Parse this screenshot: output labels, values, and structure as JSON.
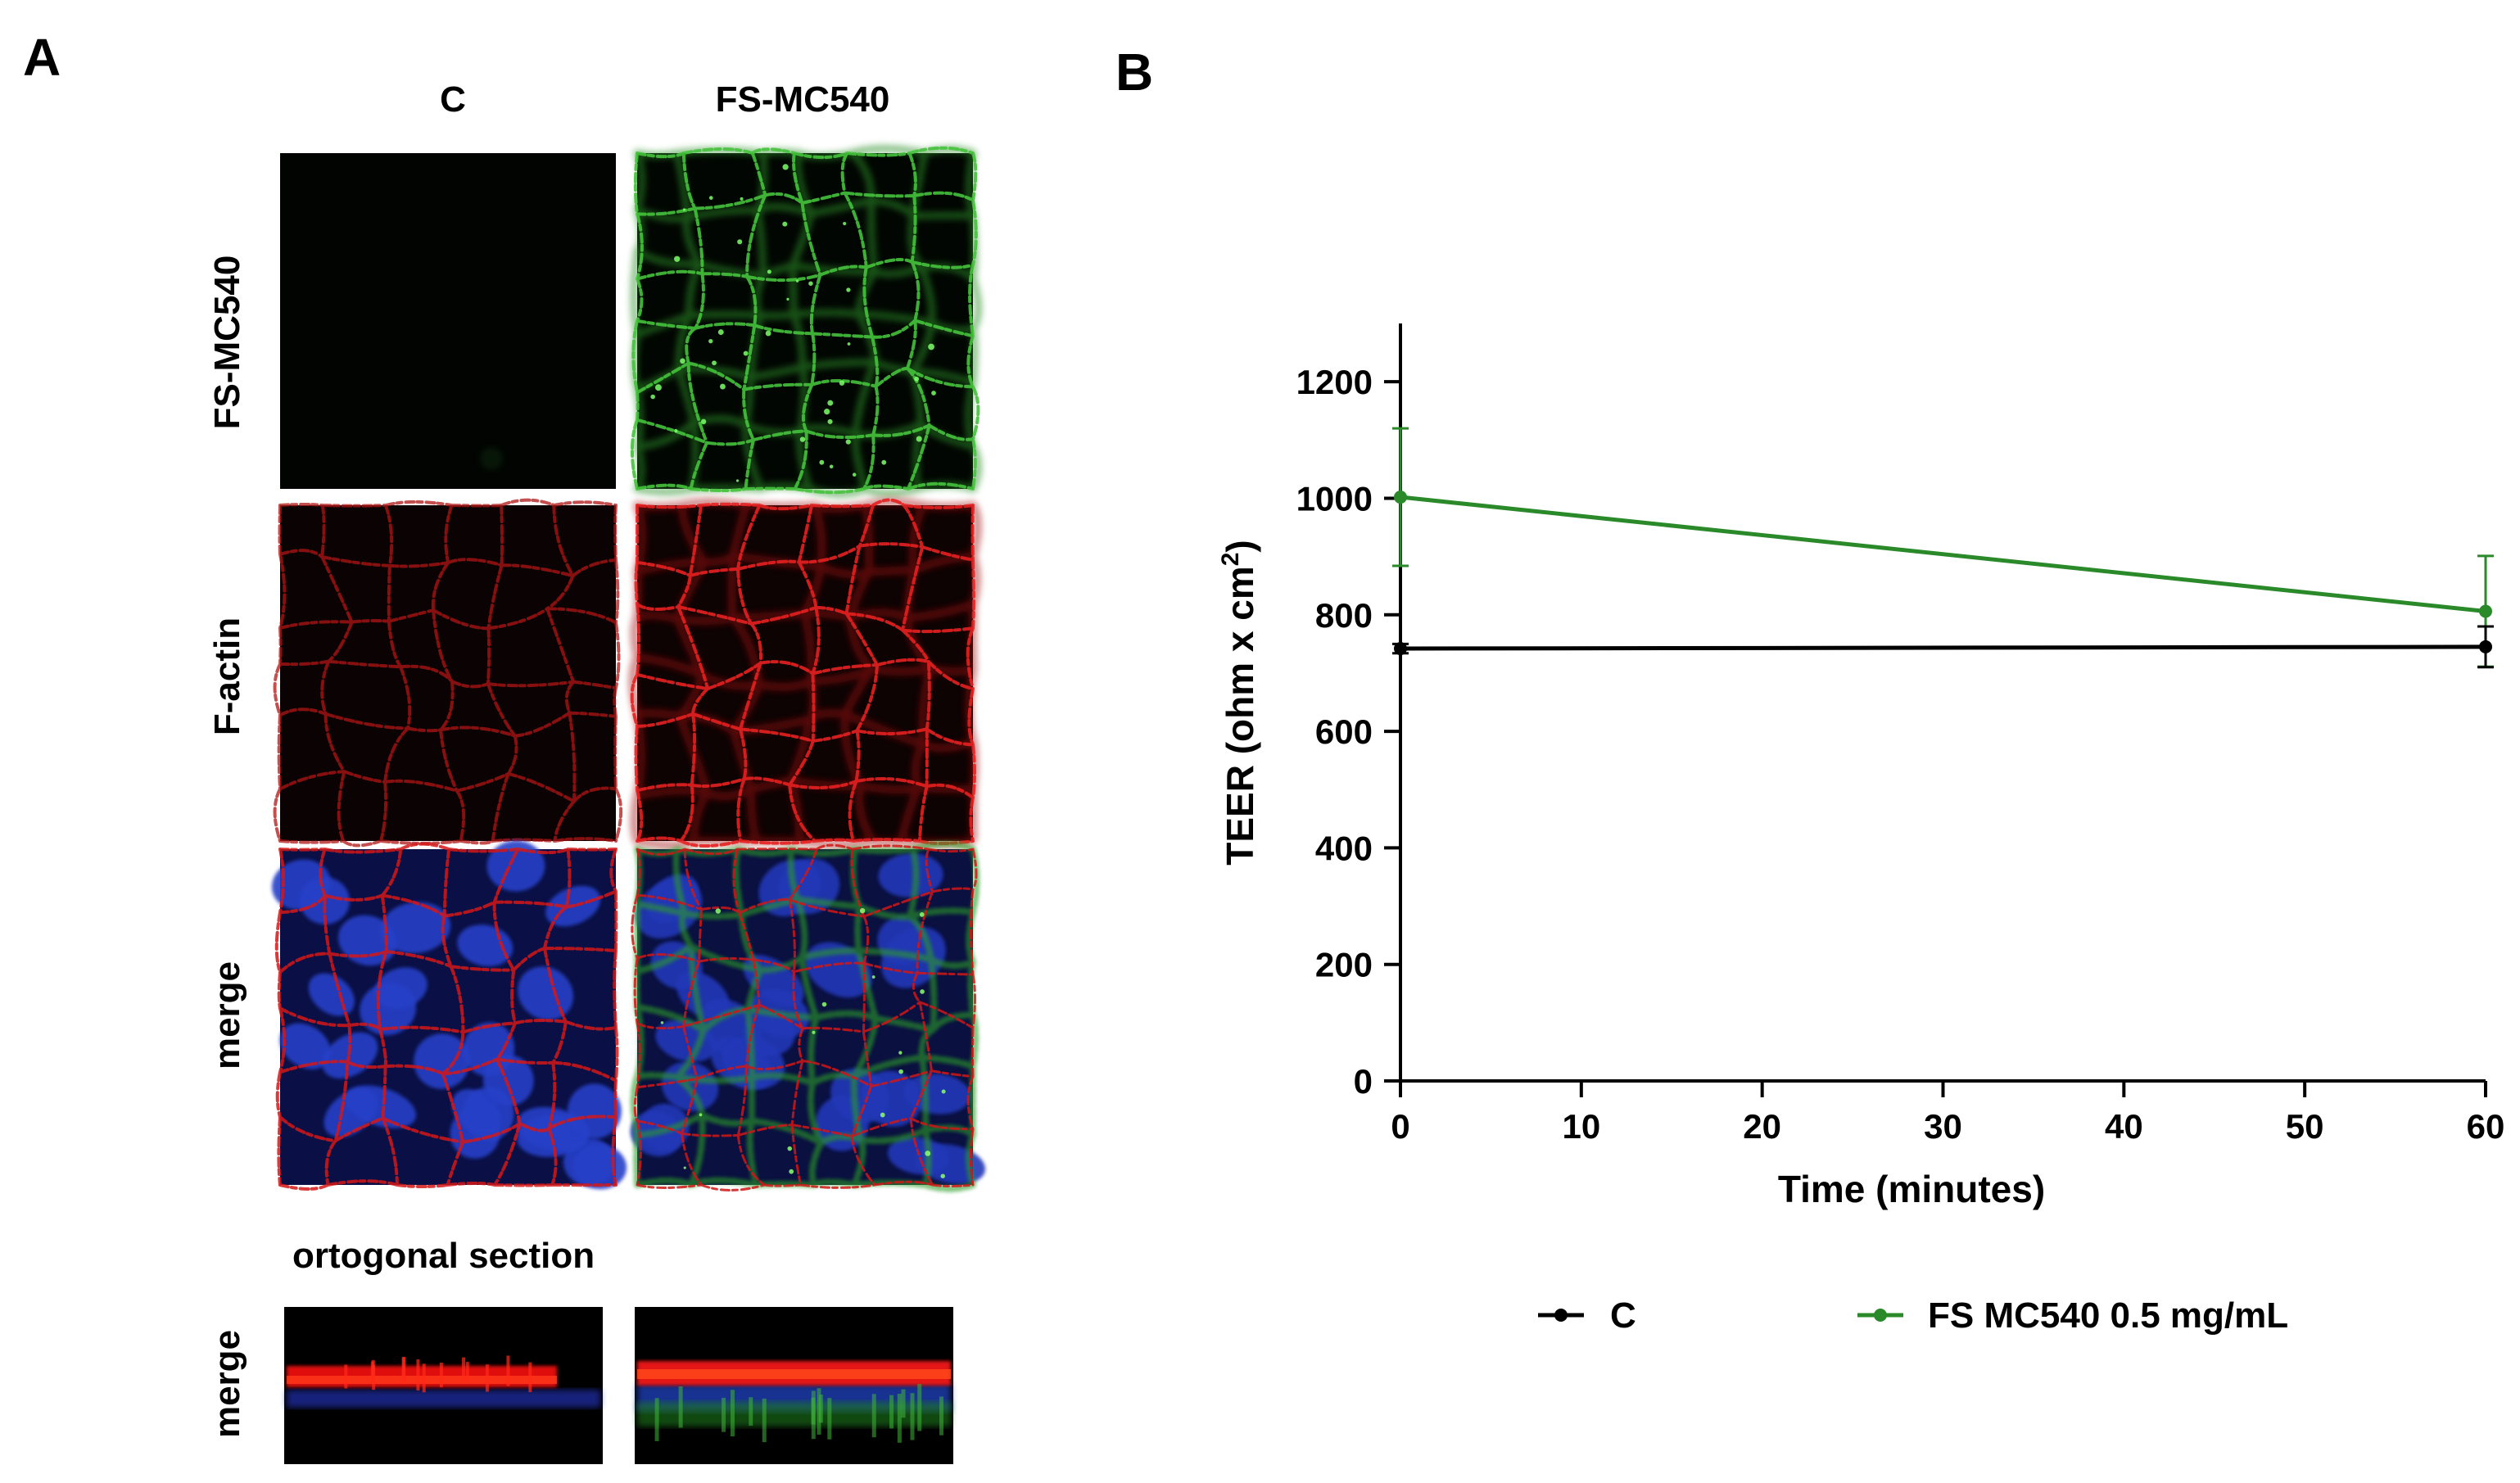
{
  "panel_a": {
    "letter": "A",
    "columns": [
      "C",
      "FS-MC540"
    ],
    "rows": [
      "FS-MC540",
      "F-actin",
      "merge"
    ],
    "section_title": "ortogonal section",
    "section_row_label": "merge"
  },
  "panel_b": {
    "letter": "B"
  },
  "colors": {
    "green_channel": "#2f9a2a",
    "red_channel": "#d21a1a",
    "blue_channel": "#1f3bc8",
    "series_c": "#000000",
    "series_fs": "#2a8a2a"
  },
  "chart_data": {
    "type": "line",
    "xlabel": "Time (minutes)",
    "ylabel": "TEER (ohm x cm",
    "ylabel_sup": "2",
    "ylabel_end": ")",
    "xlim": [
      0,
      60
    ],
    "ylim": [
      0,
      1300
    ],
    "x_ticks": [
      "0",
      "10",
      "20",
      "30",
      "40",
      "50",
      "60"
    ],
    "y_ticks": [
      "0",
      "200",
      "400",
      "600",
      "800",
      "1000",
      "1200"
    ],
    "legend_position": "bottom",
    "series": [
      {
        "name": "C",
        "x": [
          0,
          60
        ],
        "y": [
          742,
          745
        ],
        "err": [
          8,
          35
        ]
      },
      {
        "name": "FS MC540 0.5 mg/mL",
        "x": [
          0,
          60
        ],
        "y": [
          1002,
          806
        ],
        "err": [
          118,
          95
        ]
      }
    ]
  }
}
